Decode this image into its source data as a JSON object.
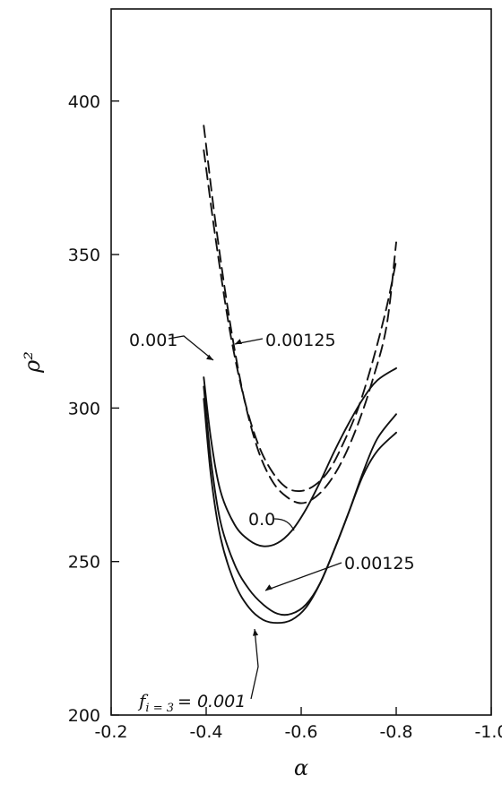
{
  "chart_data": {
    "type": "line",
    "xlabel": "α",
    "ylabel": "ρ²",
    "xlim": [
      -0.2,
      -1.0
    ],
    "ylim": [
      200,
      430
    ],
    "xticks": [
      -0.2,
      -0.4,
      -0.6,
      -0.8,
      -1.0
    ],
    "xtick_labels": [
      "-0.2",
      "-0.4",
      "-0.6",
      "-0.8",
      "-1.0"
    ],
    "yticks": [
      200,
      250,
      300,
      350,
      400
    ],
    "ytick_labels": [
      "200",
      "250",
      "300",
      "350",
      "400"
    ],
    "grid": false,
    "series": [
      {
        "style": "dashed",
        "color": "#111111",
        "x": [
          -0.395,
          -0.42,
          -0.45,
          -0.48,
          -0.51,
          -0.54,
          -0.57,
          -0.6,
          -0.63,
          -0.66,
          -0.69,
          -0.72,
          -0.75,
          -0.78,
          -0.8
        ],
        "y": [
          384,
          355,
          325,
          303,
          288,
          279,
          274,
          273,
          275,
          280,
          289,
          300,
          315,
          333,
          348
        ]
      },
      {
        "style": "dashed",
        "color": "#111111",
        "x": [
          -0.395,
          -0.42,
          -0.45,
          -0.48,
          -0.51,
          -0.54,
          -0.57,
          -0.6,
          -0.63,
          -0.66,
          -0.69,
          -0.72,
          -0.75,
          -0.78,
          -0.8
        ],
        "y": [
          392,
          360,
          328,
          303,
          286,
          276,
          271,
          269,
          271,
          276,
          284,
          295,
          309,
          327,
          354
        ]
      },
      {
        "style": "solid",
        "color": "#111111",
        "x": [
          -0.395,
          -0.41,
          -0.43,
          -0.46,
          -0.49,
          -0.52,
          -0.55,
          -0.58,
          -0.61,
          -0.64,
          -0.67,
          -0.7,
          -0.73,
          -0.76,
          -0.8
        ],
        "y": [
          310,
          290,
          273,
          262,
          257,
          255,
          256,
          260,
          267,
          276,
          286,
          295,
          303,
          309,
          313
        ]
      },
      {
        "style": "solid",
        "color": "#111111",
        "x": [
          -0.395,
          -0.41,
          -0.43,
          -0.46,
          -0.49,
          -0.52,
          -0.55,
          -0.58,
          -0.61,
          -0.64,
          -0.67,
          -0.7,
          -0.73,
          -0.76,
          -0.8
        ],
        "y": [
          307,
          283,
          263,
          249,
          241,
          236,
          233,
          233,
          236,
          243,
          254,
          266,
          279,
          290,
          298
        ]
      },
      {
        "style": "solid",
        "color": "#111111",
        "x": [
          -0.395,
          -0.41,
          -0.43,
          -0.46,
          -0.49,
          -0.52,
          -0.55,
          -0.58,
          -0.61,
          -0.64,
          -0.67,
          -0.7,
          -0.73,
          -0.76,
          -0.8
        ],
        "y": [
          303,
          278,
          258,
          243,
          235,
          231,
          230,
          231,
          235,
          243,
          254,
          266,
          278,
          286,
          292
        ]
      }
    ],
    "annotations": [
      {
        "text": "0.001",
        "x": -0.36,
        "y": 321
      },
      {
        "text": "0.00125",
        "x": -0.49,
        "y": 321
      },
      {
        "text": "0.0",
        "x": -0.52,
        "y": 263
      },
      {
        "text": "0.00125",
        "x": -0.73,
        "y": 249
      },
      {
        "prefix": "f",
        "sub": "i = 3",
        "text": "= 0.001",
        "x": -0.3,
        "y": 208
      }
    ]
  }
}
